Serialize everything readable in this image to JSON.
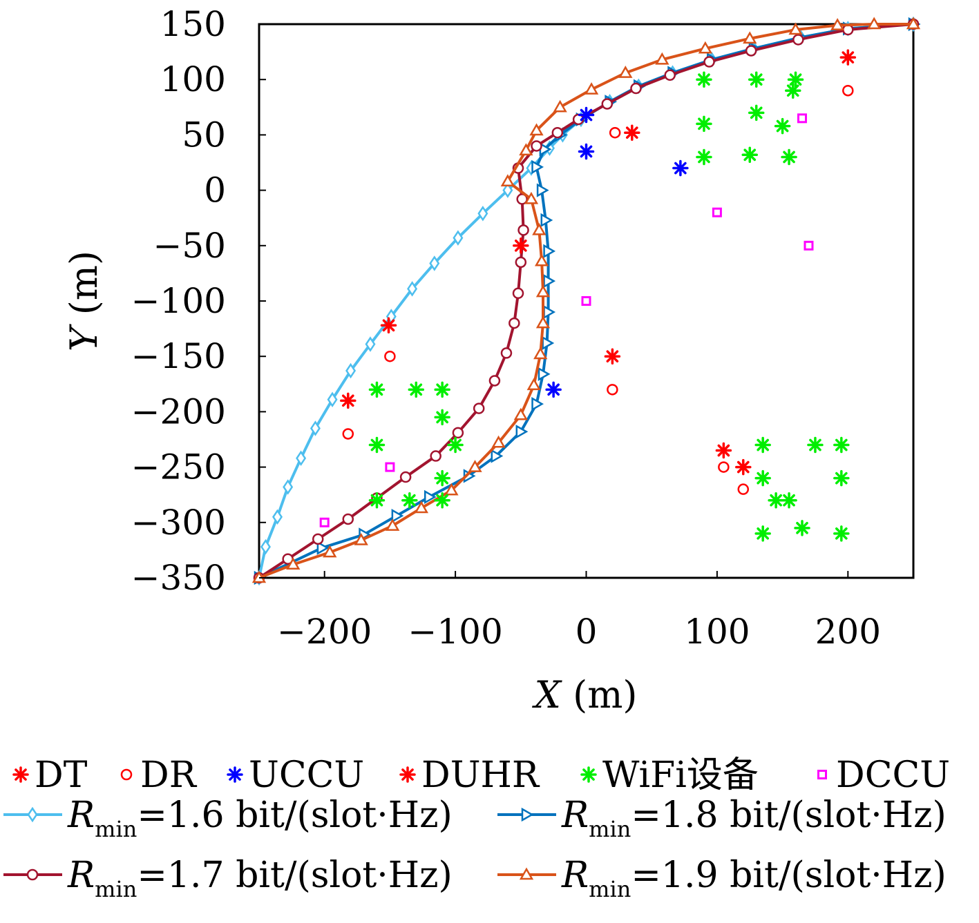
{
  "chart_data": {
    "type": "scatter",
    "xlabel": {
      "var": "X",
      "unit": " (m)"
    },
    "ylabel": {
      "var": "Y",
      "unit": " (m)"
    },
    "xlim": [
      -250,
      250
    ],
    "ylim": [
      -350,
      150
    ],
    "xticks": [
      {
        "value": -200,
        "label": "−200"
      },
      {
        "value": -100,
        "label": "−100"
      },
      {
        "value": 0,
        "label": "0"
      },
      {
        "value": 100,
        "label": "100"
      },
      {
        "value": 200,
        "label": "200"
      }
    ],
    "yticks": [
      {
        "value": 150,
        "label": "150"
      },
      {
        "value": 100,
        "label": "100"
      },
      {
        "value": 50,
        "label": "50"
      },
      {
        "value": 0,
        "label": "0"
      },
      {
        "value": -50,
        "label": "−50"
      },
      {
        "value": -100,
        "label": "−100"
      },
      {
        "value": -150,
        "label": "−150"
      },
      {
        "value": -200,
        "label": "−200"
      },
      {
        "value": -250,
        "label": "−250"
      },
      {
        "value": -300,
        "label": "−300"
      },
      {
        "value": -350,
        "label": "−350"
      }
    ],
    "grid": false,
    "legend_position": "bottom",
    "point_series": [
      {
        "name": "DT",
        "marker": "asterisk",
        "color": "#ff0000",
        "points": [
          [
            -182,
            -190
          ],
          [
            -151,
            -122
          ],
          [
            20,
            -150
          ],
          [
            35,
            52
          ],
          [
            200,
            120
          ],
          [
            105,
            -235
          ],
          [
            120,
            -250
          ]
        ]
      },
      {
        "name": "DR",
        "marker": "circle",
        "color": "#ff0000",
        "points": [
          [
            -182,
            -220
          ],
          [
            -150,
            -150
          ],
          [
            20,
            -180
          ],
          [
            22,
            52
          ],
          [
            200,
            90
          ],
          [
            105,
            -250
          ],
          [
            120,
            -270
          ]
        ]
      },
      {
        "name": "UCCU",
        "marker": "asterisk",
        "color": "#0000ff",
        "points": [
          [
            0,
            68
          ],
          [
            0,
            35
          ],
          [
            72,
            20
          ],
          [
            -25,
            -180
          ]
        ]
      },
      {
        "name": "DUHR",
        "marker": "asterisk",
        "color": "#ff0000",
        "points": [
          [
            -50,
            -50
          ]
        ]
      },
      {
        "name": "WiFi设备",
        "marker": "asterisk",
        "color": "#00ee00",
        "points": [
          [
            -160,
            -180
          ],
          [
            -130,
            -180
          ],
          [
            -110,
            -180
          ],
          [
            -110,
            -205
          ],
          [
            -160,
            -230
          ],
          [
            -100,
            -230
          ],
          [
            -110,
            -260
          ],
          [
            -160,
            -280
          ],
          [
            -135,
            -280
          ],
          [
            -110,
            -280
          ],
          [
            90,
            100
          ],
          [
            130,
            100
          ],
          [
            160,
            100
          ],
          [
            158,
            90
          ],
          [
            130,
            70
          ],
          [
            150,
            58
          ],
          [
            90,
            60
          ],
          [
            90,
            30
          ],
          [
            125,
            32
          ],
          [
            155,
            30
          ],
          [
            135,
            -230
          ],
          [
            175,
            -230
          ],
          [
            195,
            -230
          ],
          [
            135,
            -260
          ],
          [
            195,
            -260
          ],
          [
            145,
            -280
          ],
          [
            155,
            -280
          ],
          [
            135,
            -310
          ],
          [
            165,
            -305
          ],
          [
            195,
            -310
          ]
        ]
      },
      {
        "name": "DCCU",
        "marker": "square",
        "color": "#ff00ff",
        "points": [
          [
            165,
            65
          ],
          [
            100,
            -20
          ],
          [
            170,
            -50
          ],
          [
            0,
            -100
          ],
          [
            -150,
            -250
          ],
          [
            -200,
            -300
          ]
        ]
      }
    ],
    "line_series": [
      {
        "name_prefix": "R",
        "name_sub": "min",
        "name_suffix": "=1.6 bit/(slot·Hz)",
        "marker": "diamond",
        "color": "#4dbeee",
        "points": [
          [
            -250,
            -350
          ],
          [
            -245,
            -322
          ],
          [
            -236,
            -295
          ],
          [
            -228,
            -268
          ],
          [
            -218,
            -242
          ],
          [
            -207,
            -215
          ],
          [
            -194,
            -189
          ],
          [
            -180,
            -163
          ],
          [
            -165,
            -139
          ],
          [
            -149,
            -114
          ],
          [
            -133,
            -89
          ],
          [
            -116,
            -66
          ],
          [
            -98,
            -43
          ],
          [
            -79,
            -21
          ],
          [
            -60,
            0
          ],
          [
            -42,
            20
          ],
          [
            -28,
            38
          ],
          [
            -18,
            50
          ],
          [
            -4,
            64
          ],
          [
            18,
            80
          ],
          [
            40,
            94
          ],
          [
            66,
            106
          ],
          [
            96,
            118
          ],
          [
            128,
            128
          ],
          [
            164,
            138
          ],
          [
            200,
            146
          ],
          [
            250,
            150
          ]
        ]
      },
      {
        "name_prefix": "R",
        "name_sub": "min",
        "name_suffix": "=1.8 bit/(slot·Hz)",
        "marker": "triangle-right",
        "color": "#0072bd",
        "points": [
          [
            -250,
            -350
          ],
          [
            -202,
            -323
          ],
          [
            -170,
            -311
          ],
          [
            -145,
            -294
          ],
          [
            -120,
            -277
          ],
          [
            -90,
            -258
          ],
          [
            -69,
            -240
          ],
          [
            -50,
            -218
          ],
          [
            -38,
            -193
          ],
          [
            -33,
            -166
          ],
          [
            -30,
            -138
          ],
          [
            -29,
            -110
          ],
          [
            -29,
            -82
          ],
          [
            -29,
            -55
          ],
          [
            -31,
            -27
          ],
          [
            -34,
            0
          ],
          [
            -38,
            21
          ],
          [
            -32,
            37
          ],
          [
            -20,
            50
          ],
          [
            -4,
            64
          ],
          [
            18,
            80
          ],
          [
            40,
            94
          ],
          [
            66,
            106
          ],
          [
            96,
            118
          ],
          [
            128,
            128
          ],
          [
            164,
            138
          ],
          [
            200,
            146
          ],
          [
            250,
            150
          ]
        ]
      },
      {
        "name_prefix": "R",
        "name_sub": "min",
        "name_suffix": "=1.7 bit/(slot·Hz)",
        "marker": "circle",
        "color": "#a2142f",
        "points": [
          [
            -250,
            -350
          ],
          [
            -228,
            -333
          ],
          [
            -205,
            -315
          ],
          [
            -182,
            -297
          ],
          [
            -160,
            -278
          ],
          [
            -138,
            -259
          ],
          [
            -115,
            -240
          ],
          [
            -98,
            -219
          ],
          [
            -82,
            -197
          ],
          [
            -70,
            -172
          ],
          [
            -61,
            -147
          ],
          [
            -55,
            -120
          ],
          [
            -52,
            -93
          ],
          [
            -50,
            -65
          ],
          [
            -48,
            -36
          ],
          [
            -49,
            -8
          ],
          [
            -52,
            20
          ],
          [
            -38,
            40
          ],
          [
            -22,
            52
          ],
          [
            -6,
            64
          ],
          [
            16,
            78
          ],
          [
            38,
            92
          ],
          [
            64,
            104
          ],
          [
            94,
            116
          ],
          [
            126,
            126
          ],
          [
            162,
            136
          ],
          [
            200,
            145
          ],
          [
            250,
            150
          ]
        ]
      },
      {
        "name_prefix": "R",
        "name_sub": "min",
        "name_suffix": "=1.9 bit/(slot·Hz)",
        "marker": "triangle-up",
        "color": "#d95319",
        "points": [
          [
            -250,
            -350
          ],
          [
            -224,
            -338
          ],
          [
            -196,
            -327
          ],
          [
            -172,
            -316
          ],
          [
            -148,
            -303
          ],
          [
            -126,
            -287
          ],
          [
            -103,
            -271
          ],
          [
            -85,
            -250
          ],
          [
            -67,
            -228
          ],
          [
            -50,
            -203
          ],
          [
            -40,
            -176
          ],
          [
            -35,
            -148
          ],
          [
            -33,
            -120
          ],
          [
            -33,
            -92
          ],
          [
            -34,
            -64
          ],
          [
            -36,
            -36
          ],
          [
            -42,
            -8
          ],
          [
            -60,
            8
          ],
          [
            -46,
            36
          ],
          [
            -38,
            54
          ],
          [
            -20,
            75
          ],
          [
            4,
            91
          ],
          [
            30,
            106
          ],
          [
            58,
            118
          ],
          [
            91,
            128
          ],
          [
            125,
            137
          ],
          [
            160,
            145
          ],
          [
            192,
            149
          ],
          [
            220,
            150
          ],
          [
            250,
            150
          ]
        ]
      }
    ]
  }
}
